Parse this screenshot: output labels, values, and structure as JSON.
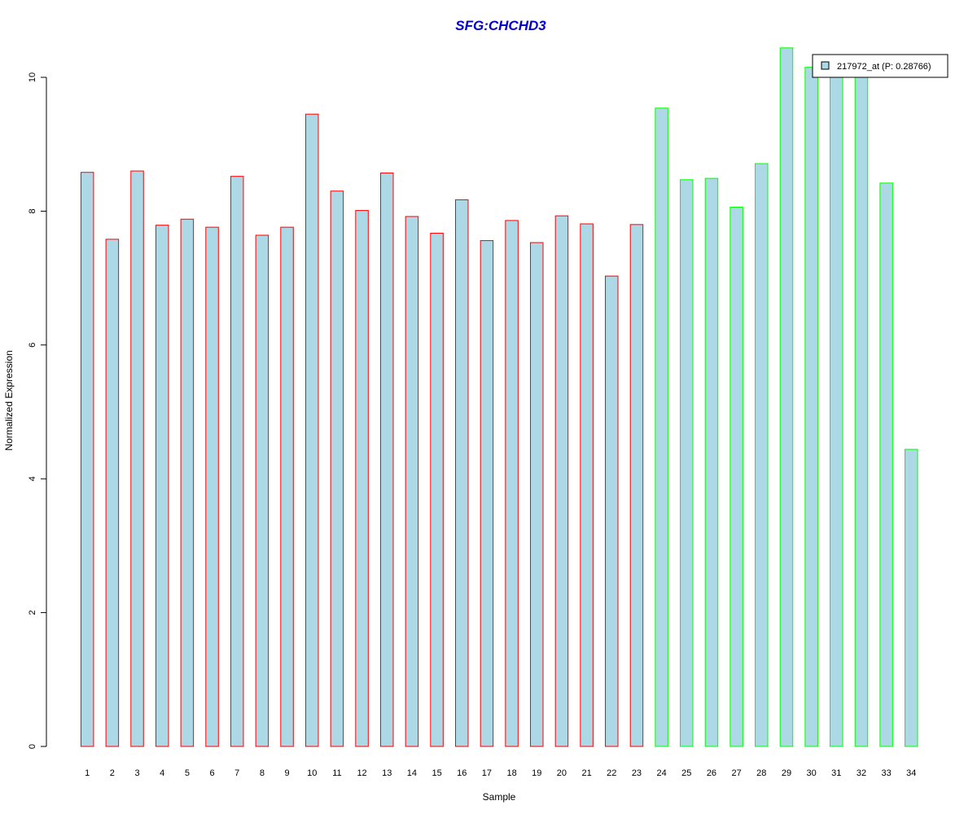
{
  "chart_data": {
    "type": "bar",
    "title": "SFG:CHCHD3",
    "xlabel": "Sample",
    "ylabel": "Normalized Expression",
    "categories": [
      "1",
      "2",
      "3",
      "4",
      "5",
      "6",
      "7",
      "8",
      "9",
      "10",
      "11",
      "12",
      "13",
      "14",
      "15",
      "16",
      "17",
      "18",
      "19",
      "20",
      "21",
      "22",
      "23",
      "24",
      "25",
      "26",
      "27",
      "28",
      "29",
      "30",
      "31",
      "32",
      "33",
      "34"
    ],
    "series": [
      {
        "name": "217972_at (P: 0.28766)",
        "values": [
          8.58,
          7.58,
          8.6,
          7.79,
          7.88,
          7.76,
          8.52,
          7.64,
          7.76,
          9.45,
          8.3,
          8.01,
          8.57,
          7.92,
          7.67,
          8.17,
          7.56,
          7.86,
          7.53,
          7.93,
          7.81,
          7.03,
          7.8,
          9.54,
          8.47,
          8.49,
          8.06,
          8.71,
          10.44,
          10.15,
          10.05,
          10.05,
          8.42,
          4.44
        ]
      }
    ],
    "group_border_colors": [
      "#ff0000",
      "#ff0000",
      "#ff0000",
      "#ff0000",
      "#ff0000",
      "#ff0000",
      "#ff0000",
      "#ff0000",
      "#ff0000",
      "#ff0000",
      "#ff0000",
      "#ff0000",
      "#ff0000",
      "#ff0000",
      "#ff0000",
      "#ff0000",
      "#ff0000",
      "#ff0000",
      "#ff0000",
      "#ff0000",
      "#ff0000",
      "#ff0000",
      "#ff0000",
      "#00ff00",
      "#00ff00",
      "#00ff00",
      "#00ff00",
      "#00ff00",
      "#00ff00",
      "#00ff00",
      "#00ff00",
      "#00ff00",
      "#00ff00",
      "#00ff00"
    ],
    "yticks": [
      0,
      2,
      4,
      6,
      8,
      10
    ],
    "ylim": [
      0,
      10.5
    ],
    "legend_position": "top-right",
    "grid": false,
    "colors": {
      "bar_fill": "#add8e6",
      "title": "#0000cd"
    }
  }
}
